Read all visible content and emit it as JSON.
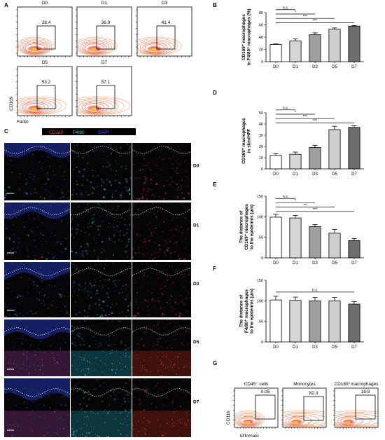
{
  "panel_letters": [
    "A",
    "B",
    "C",
    "D",
    "E",
    "F",
    "G"
  ],
  "panelA": {
    "ylabel": "CD169",
    "xlabel": "F4/80",
    "plots": [
      {
        "label": "D0",
        "value": "28.4"
      },
      {
        "label": "D1",
        "value": "36.9"
      },
      {
        "label": "D3",
        "value": "41.4"
      },
      {
        "label": "D5",
        "value": "53.2"
      },
      {
        "label": "D7",
        "value": "57.1"
      }
    ]
  },
  "panelC": {
    "legend": [
      "CD169",
      "F4/80",
      "DAPI"
    ],
    "legend_colors": [
      "#ff3b3b",
      "#3fd6e6",
      "#3a5bff"
    ],
    "rows": [
      "D0",
      "D1",
      "D3",
      "D5",
      "D7"
    ]
  },
  "panelG": {
    "ylabel": "CD11b",
    "xlabel": "tdTomato",
    "plots": [
      {
        "title": "CD45⁻ cells",
        "value": "0.05"
      },
      {
        "title": "Monocytes",
        "value": "82.3"
      },
      {
        "title": "CD169⁺macrophages",
        "value": "18.9"
      }
    ]
  },
  "chart_data": [
    {
      "panel": "B",
      "type": "bar",
      "categories": [
        "D0",
        "D1",
        "D3",
        "D5",
        "D7"
      ],
      "values": [
        28,
        34,
        44,
        53,
        58
      ],
      "errors": [
        1,
        3,
        3,
        2,
        1
      ],
      "ylabel": [
        "CD169⁺ macrophages",
        "in F4/80⁺ macrophages (%)"
      ],
      "ylim": [
        0,
        80
      ],
      "yticks": [
        0,
        20,
        40,
        60,
        80
      ],
      "bar_colors": [
        "#ffffff",
        "#d6d6d6",
        "#9e9e9e",
        "#cfcfcf",
        "#6d6d6d"
      ],
      "sig": [
        {
          "from": 0,
          "to": 1,
          "label": "n.s."
        },
        {
          "from": 0,
          "to": 2,
          "label": "*"
        },
        {
          "from": 0,
          "to": 3,
          "label": "***"
        },
        {
          "from": 0,
          "to": 4,
          "label": "***"
        }
      ]
    },
    {
      "panel": "D",
      "type": "bar",
      "categories": [
        "D0",
        "D1",
        "D3",
        "D5",
        "D7"
      ],
      "values": [
        12,
        13,
        19,
        35,
        37
      ],
      "errors": [
        1.5,
        2,
        2,
        3,
        1.5
      ],
      "ylabel": [
        "CD169⁺ macrophages",
        "in skin/HPF"
      ],
      "ylim": [
        0,
        50
      ],
      "yticks": [
        0,
        10,
        20,
        30,
        40,
        50
      ],
      "bar_colors": [
        "#ffffff",
        "#d6d6d6",
        "#9e9e9e",
        "#cfcfcf",
        "#6d6d6d"
      ],
      "sig": [
        {
          "from": 0,
          "to": 1,
          "label": "n.s."
        },
        {
          "from": 0,
          "to": 2,
          "label": "*"
        },
        {
          "from": 0,
          "to": 3,
          "label": "***"
        },
        {
          "from": 0,
          "to": 4,
          "label": "***"
        }
      ]
    },
    {
      "panel": "E",
      "type": "bar",
      "categories": [
        "D0",
        "D1",
        "D3",
        "D5",
        "D7"
      ],
      "values": [
        99,
        97,
        76,
        60,
        42
      ],
      "errors": [
        7,
        6,
        5,
        9,
        5
      ],
      "ylabel": [
        "The distance of",
        "CD169⁺ macrophages",
        "to the epidermis (μm)"
      ],
      "ylim": [
        0,
        150
      ],
      "yticks": [
        0,
        50,
        100,
        150
      ],
      "bar_colors": [
        "#ffffff",
        "#d6d6d6",
        "#9e9e9e",
        "#cfcfcf",
        "#6d6d6d"
      ],
      "sig": [
        {
          "from": 0,
          "to": 1,
          "label": "n.s."
        },
        {
          "from": 0,
          "to": 2,
          "label": "*"
        },
        {
          "from": 0,
          "to": 3,
          "label": "**"
        },
        {
          "from": 0,
          "to": 4,
          "label": "***"
        }
      ]
    },
    {
      "panel": "F",
      "type": "bar",
      "categories": [
        "D0",
        "D1",
        "D3",
        "D5",
        "D7"
      ],
      "values": [
        102,
        101,
        100,
        100,
        92
      ],
      "errors": [
        9,
        8,
        8,
        8,
        6
      ],
      "ylabel": [
        "The distance of",
        "F4/80⁺ macrophages",
        "to the epidermis (μm)"
      ],
      "ylim": [
        0,
        150
      ],
      "yticks": [
        0,
        50,
        100,
        150
      ],
      "bar_colors": [
        "#ffffff",
        "#d6d6d6",
        "#9e9e9e",
        "#cfcfcf",
        "#6d6d6d"
      ],
      "sig": [
        {
          "from": 0,
          "to": 4,
          "label": "n.s."
        }
      ]
    }
  ]
}
